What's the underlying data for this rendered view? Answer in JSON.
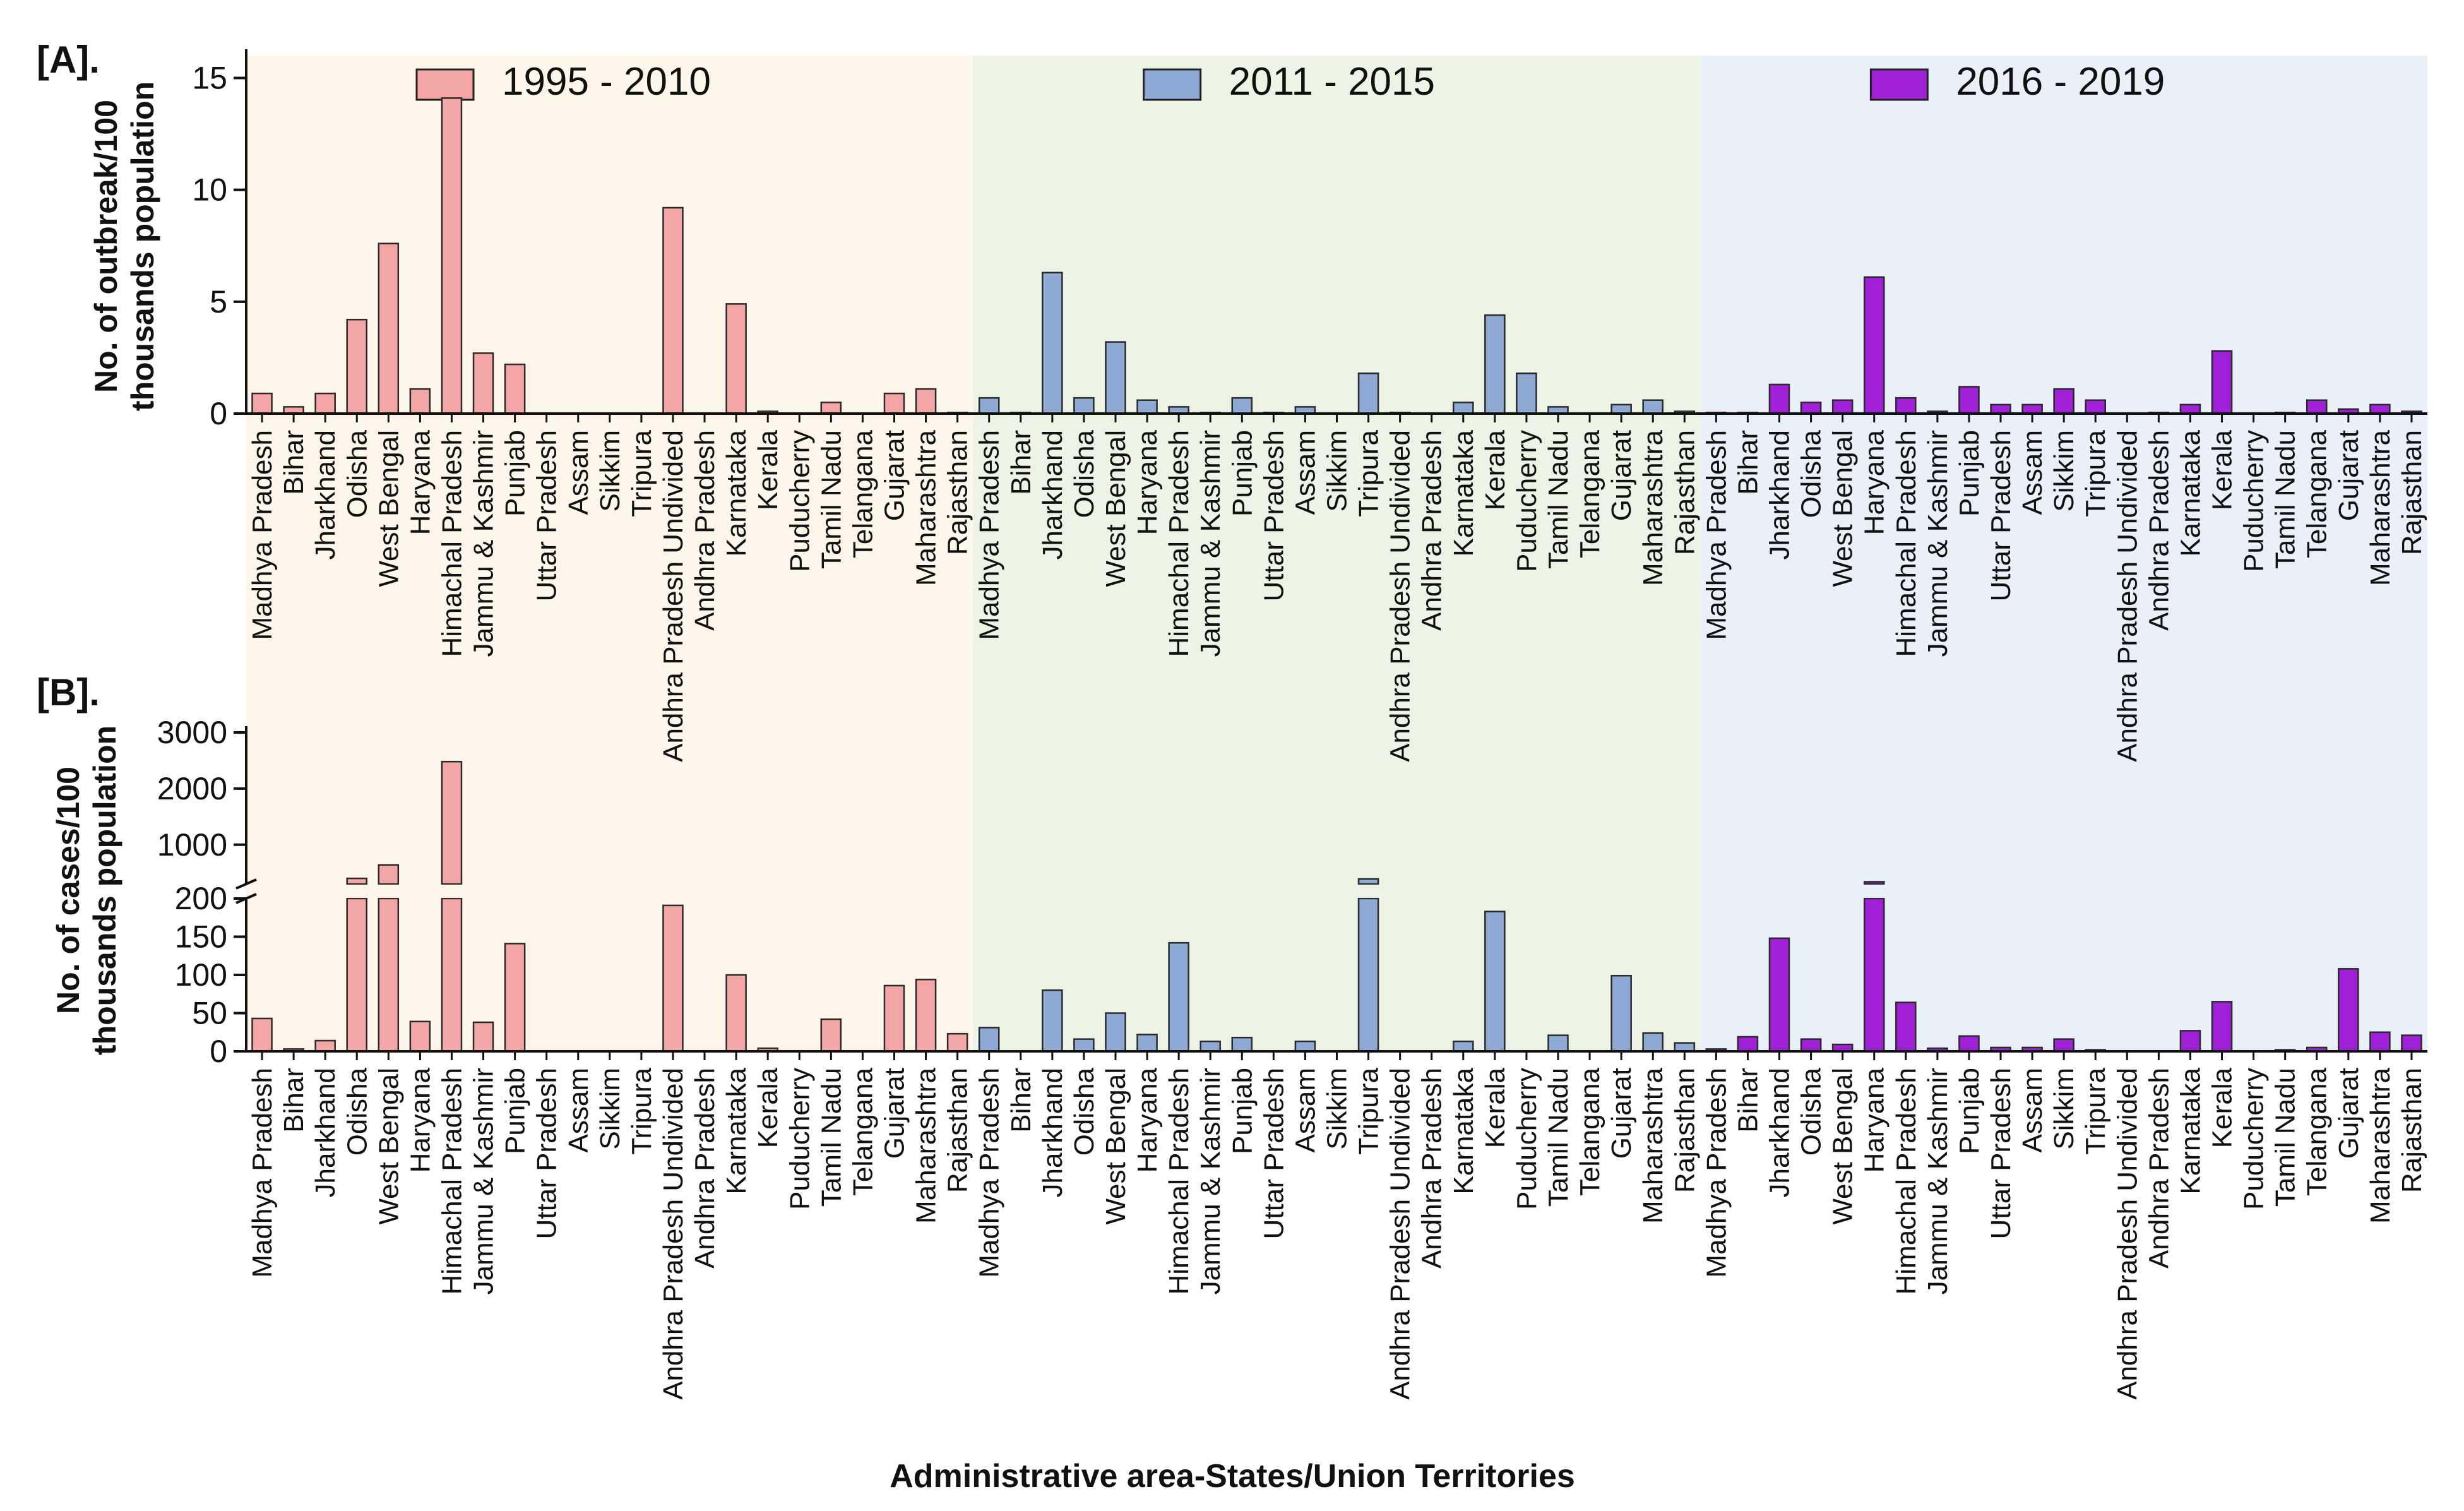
{
  "figure": {
    "panel_a_label": "[A].",
    "panel_b_label": "[B].",
    "x_axis_title": "Administrative area-States/Union Territories"
  },
  "chart_data": [
    {
      "type": "bar",
      "panel": "[A].",
      "ylabel_line1": "No. of outbreak/100",
      "ylabel_line2": "thousands population",
      "ylim": [
        0,
        16
      ],
      "yticks": [
        0,
        5,
        10,
        15
      ],
      "grid": false,
      "legend_position": "top",
      "groups": [
        {
          "name": "1995 - 2010",
          "color": "#F4A6A6",
          "categories": [
            "Madhya Pradesh",
            "Bihar",
            "Jharkhand",
            "Odisha",
            "West Bengal",
            "Haryana",
            "Himachal Pradesh",
            "Jammu & Kashmir",
            "Punjab",
            "Uttar Pradesh",
            "Assam",
            "Sikkim",
            "Tripura",
            "Andhra Pradesh Undivided",
            "Andhra Pradesh",
            "Karnataka",
            "Kerala",
            "Puducherry",
            "Tamil Nadu",
            "Telangana",
            "Gujarat",
            "Maharashtra",
            "Rajasthan"
          ],
          "values": [
            0.9,
            0.3,
            0.9,
            4.2,
            7.6,
            1.1,
            14.1,
            2.7,
            2.2,
            0,
            0,
            0,
            0,
            9.2,
            0,
            4.9,
            0.1,
            0,
            0.5,
            0,
            0.9,
            1.1,
            0.05
          ]
        },
        {
          "name": "2011 - 2015",
          "color": "#8EA9D4",
          "categories": [
            "Madhya Pradesh",
            "Bihar",
            "Jharkhand",
            "Odisha",
            "West Bengal",
            "Haryana",
            "Himachal Pradesh",
            "Jammu & Kashmir",
            "Punjab",
            "Uttar Pradesh",
            "Assam",
            "Sikkim",
            "Tripura",
            "Andhra Pradesh Undivided",
            "Andhra Pradesh",
            "Karnataka",
            "Kerala",
            "Puducherry",
            "Tamil Nadu",
            "Telangana",
            "Gujarat",
            "Maharashtra",
            "Rajasthan"
          ],
          "values": [
            0.7,
            0.05,
            6.3,
            0.7,
            3.2,
            0.6,
            0.3,
            0.05,
            0.7,
            0.05,
            0.3,
            0,
            1.8,
            0.05,
            0,
            0.5,
            4.4,
            1.8,
            0.3,
            0,
            0.4,
            0.6,
            0.1
          ]
        },
        {
          "name": "2016 - 2019",
          "color": "#A020D8",
          "categories": [
            "Madhya Pradesh",
            "Bihar",
            "Jharkhand",
            "Odisha",
            "West Bengal",
            "Haryana",
            "Himachal Pradesh",
            "Jammu & Kashmir",
            "Punjab",
            "Uttar Pradesh",
            "Assam",
            "Sikkim",
            "Tripura",
            "Andhra Pradesh Undivided",
            "Andhra Pradesh",
            "Karnataka",
            "Kerala",
            "Puducherry",
            "Tamil Nadu",
            "Telangana",
            "Gujarat",
            "Maharashtra",
            "Rajasthan"
          ],
          "values": [
            0.05,
            0.05,
            1.3,
            0.5,
            0.6,
            6.1,
            0.7,
            0.1,
            1.2,
            0.4,
            0.4,
            1.1,
            0.6,
            0,
            0.05,
            0.4,
            2.8,
            0,
            0.05,
            0.6,
            0.2,
            0.4,
            0.1
          ]
        }
      ]
    },
    {
      "type": "bar",
      "panel": "[B].",
      "ylabel_line1": "No. of cases/100",
      "ylabel_line2": "thousands population",
      "y_axis_break": [
        200,
        300
      ],
      "ylim_lower": [
        0,
        200
      ],
      "ylim_upper": [
        300,
        3000
      ],
      "yticks_lower": [
        0,
        50,
        100,
        150,
        200
      ],
      "yticks_upper": [
        1000,
        2000,
        3000
      ],
      "grid": false,
      "groups": [
        {
          "name": "1995 - 2010",
          "color": "#F4A6A6",
          "categories": [
            "Madhya Pradesh",
            "Bihar",
            "Jharkhand",
            "Odisha",
            "West Bengal",
            "Haryana",
            "Himachal Pradesh",
            "Jammu & Kashmir",
            "Punjab",
            "Uttar Pradesh",
            "Assam",
            "Sikkim",
            "Tripura",
            "Andhra Pradesh Undivided",
            "Andhra Pradesh",
            "Karnataka",
            "Kerala",
            "Puducherry",
            "Tamil Nadu",
            "Telangana",
            "Gujarat",
            "Maharashtra",
            "Rajasthan"
          ],
          "values": [
            43,
            3,
            14,
            400,
            640,
            39,
            2480,
            38,
            141,
            0,
            0,
            0,
            0,
            191,
            0,
            100,
            4,
            0,
            42,
            0,
            86,
            94,
            23
          ]
        },
        {
          "name": "2011 - 2015",
          "color": "#8EA9D4",
          "categories": [
            "Madhya Pradesh",
            "Bihar",
            "Jharkhand",
            "Odisha",
            "West Bengal",
            "Haryana",
            "Himachal Pradesh",
            "Jammu & Kashmir",
            "Punjab",
            "Uttar Pradesh",
            "Assam",
            "Sikkim",
            "Tripura",
            "Andhra Pradesh Undivided",
            "Andhra Pradesh",
            "Karnataka",
            "Kerala",
            "Puducherry",
            "Tamil Nadu",
            "Telangana",
            "Gujarat",
            "Maharashtra",
            "Rajasthan"
          ],
          "values": [
            31,
            0,
            80,
            16,
            50,
            22,
            142,
            13,
            18,
            0,
            13,
            0,
            390,
            0,
            0,
            13,
            183,
            0,
            21,
            0,
            99,
            24,
            11
          ]
        },
        {
          "name": "2016 - 2019",
          "color": "#A020D8",
          "categories": [
            "Madhya Pradesh",
            "Bihar",
            "Jharkhand",
            "Odisha",
            "West Bengal",
            "Haryana",
            "Himachal Pradesh",
            "Jammu & Kashmir",
            "Punjab",
            "Uttar Pradesh",
            "Assam",
            "Sikkim",
            "Tripura",
            "Andhra Pradesh Undivided",
            "Andhra Pradesh",
            "Karnataka",
            "Kerala",
            "Puducherry",
            "Tamil Nadu",
            "Telangana",
            "Gujarat",
            "Maharashtra",
            "Rajasthan"
          ],
          "values": [
            3,
            19,
            148,
            16,
            9,
            340,
            64,
            4,
            20,
            5,
            5,
            16,
            2,
            0,
            0,
            27,
            65,
            0,
            2,
            5,
            108,
            25,
            21
          ]
        }
      ]
    }
  ]
}
